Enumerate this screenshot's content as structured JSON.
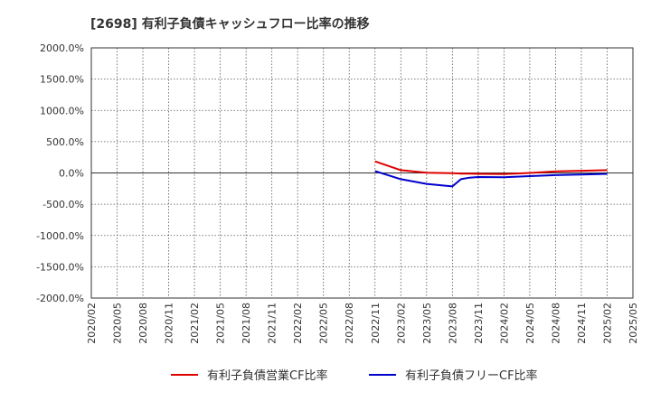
{
  "chart_data": {
    "type": "line",
    "title": "[2698]  有利子負債キャッシュフロー比率の推移",
    "xlabel": "",
    "ylabel": "",
    "ylim": [
      -2000,
      2000
    ],
    "yticks": [
      2000,
      1500,
      1000,
      500,
      0,
      -500,
      -1000,
      -1500,
      -2000
    ],
    "ytick_labels": [
      "2000.0%",
      "1500.0%",
      "1000.0%",
      "500.0%",
      "0.0%",
      "-500.0%",
      "-1000.0%",
      "-1500.0%",
      "-2000.0%"
    ],
    "xticks": [
      "2020/02",
      "2020/05",
      "2020/08",
      "2020/11",
      "2021/02",
      "2021/05",
      "2021/08",
      "2021/11",
      "2022/02",
      "2022/05",
      "2022/08",
      "2022/11",
      "2023/02",
      "2023/05",
      "2023/08",
      "2023/11",
      "2024/02",
      "2024/05",
      "2024/08",
      "2024/11",
      "2025/02",
      "2025/05"
    ],
    "grid": true,
    "legend_position": "bottom",
    "series": [
      {
        "name": "有利子負債営業CF比率",
        "color": "#e00000",
        "x": [
          "2022/11",
          "2023/02",
          "2023/05",
          "2023/08",
          "2023/09",
          "2023/10",
          "2023/11",
          "2024/02",
          "2024/05",
          "2024/08",
          "2024/11",
          "2025/02"
        ],
        "values": [
          185,
          45,
          5,
          -5,
          -10,
          -12,
          -15,
          -18,
          0,
          25,
          35,
          45
        ]
      },
      {
        "name": "有利子負債フリーCF比率",
        "color": "#0000cc",
        "x": [
          "2022/11",
          "2023/02",
          "2023/05",
          "2023/08",
          "2023/09",
          "2023/10",
          "2023/11",
          "2024/02",
          "2024/05",
          "2024/08",
          "2024/11",
          "2025/02"
        ],
        "values": [
          30,
          -100,
          -175,
          -215,
          -100,
          -75,
          -65,
          -70,
          -50,
          -35,
          -25,
          -15
        ]
      }
    ]
  }
}
